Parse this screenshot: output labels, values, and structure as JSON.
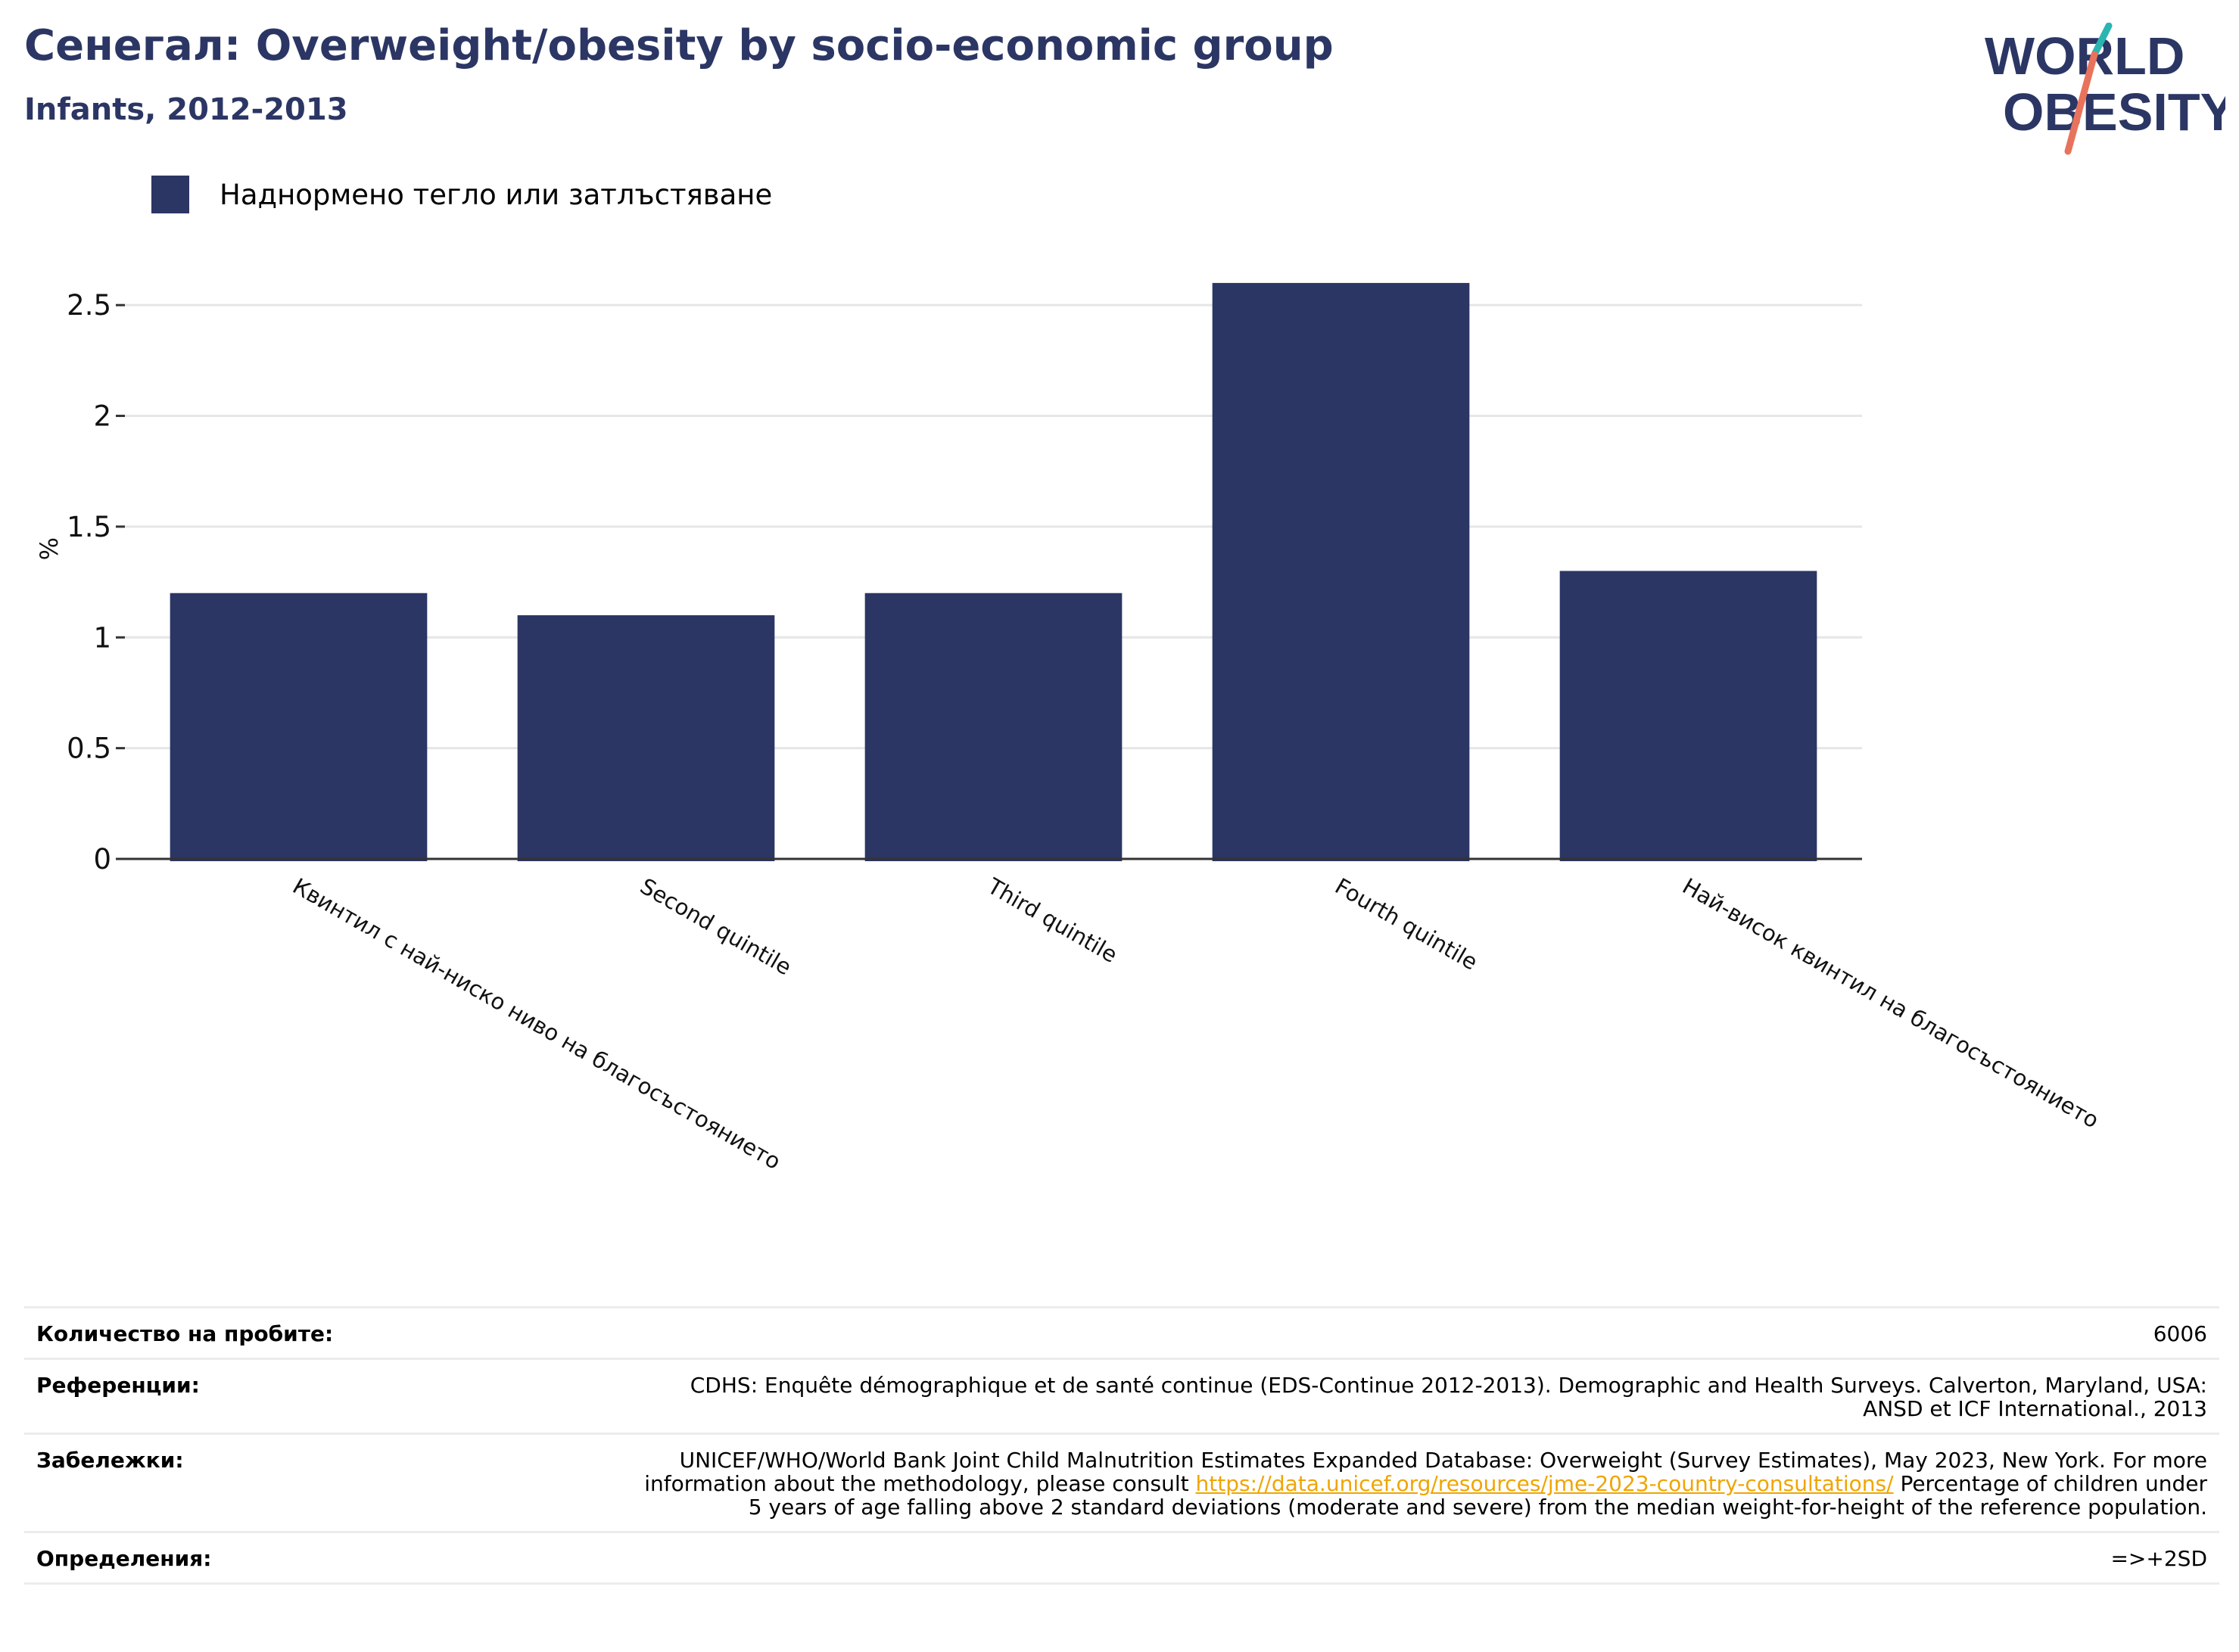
{
  "header": {
    "title": "Сенегал: Overweight/obesity by socio-economic group",
    "subtitle": "Infants, 2012-2013"
  },
  "logo": {
    "line1": "WORLD",
    "line2": "OBESITY"
  },
  "colors": {
    "bar": "#2b3664",
    "title": "#2b3664",
    "link": "#f0a500",
    "grid": "#e6e6e6",
    "logo_teal": "#2bb5b0",
    "logo_coral": "#e8735c"
  },
  "chart_data": {
    "type": "bar",
    "categories": [
      "Квинтил с най-ниско ниво на благосъстоянието",
      "Second quintile",
      "Third quintile",
      "Fourth quintile",
      "Най-висок квинтил на благосъстоянието"
    ],
    "series": [
      {
        "name": "Наднормено тегло или затлъстяване",
        "values": [
          1.2,
          1.1,
          1.2,
          2.6,
          1.3
        ]
      }
    ],
    "ylabel": "%",
    "ylim": [
      0,
      2.75
    ],
    "yticks": [
      0,
      0.5,
      1,
      1.5,
      2,
      2.5
    ],
    "ytick_labels": [
      "0",
      "0.5",
      "1",
      "1.5",
      "2",
      "2.5"
    ],
    "grid": true,
    "legend_position": "top-left"
  },
  "info": {
    "sample_size": {
      "label": "Количество на пробите:",
      "value": "6006"
    },
    "references": {
      "label": "Референции:",
      "value": "CDHS: Enquête démographique et de santé continue (EDS-Continue 2012-2013). Demographic and Health Surveys. Calverton, Maryland, USA: ANSD et ICF International., 2013"
    },
    "notes": {
      "label": "Забележки:",
      "value_before": "UNICEF/WHO/World Bank Joint Child Malnutrition Estimates Expanded Database: Overweight (Survey Estimates), May 2023, New York. For more information about the methodology, please consult ",
      "link": "https://data.unicef.org/resources/jme-2023-country-consultations/",
      "value_after": " Percentage of children under 5 years of age falling above 2 standard deviations (moderate and severe) from the median weight-for-height of the reference population."
    },
    "definitions": {
      "label": "Определения:",
      "value": "=>+2SD"
    }
  }
}
